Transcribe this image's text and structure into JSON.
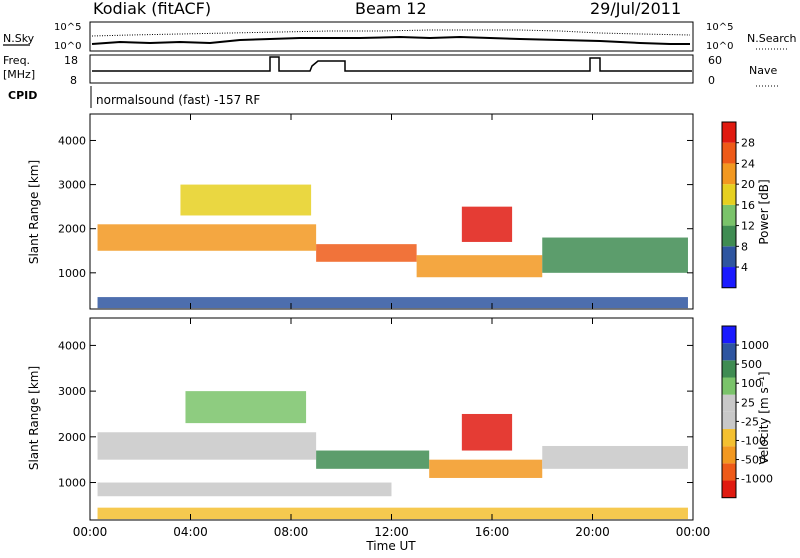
{
  "header": {
    "station": "Kodiak (fitACF)",
    "beam": "Beam 12",
    "date": "29/Jul/2011"
  },
  "params": {
    "nsky_label": "N.Sky",
    "nsearch_label": "N.Search",
    "freq_label_1": "Freq.",
    "freq_label_2": "[MHz]",
    "nave_label": "Nave",
    "cpid_label": "CPID",
    "cpid_text": "normalsound (fast) -157 RF",
    "noise_ticks_left": [
      "10^5",
      "10^0"
    ],
    "noise_ticks_right": [
      "10^5",
      "10^0"
    ],
    "freq_ticks": [
      "18",
      "8"
    ],
    "nave_ticks": [
      "60",
      "0"
    ]
  },
  "colors": {
    "power": [
      "#1a1aff",
      "#2e55a0",
      "#3f8c52",
      "#7ac36a",
      "#e6d020",
      "#f29820",
      "#ee5a18",
      "#e01a10"
    ],
    "velocity": [
      "#e01a10",
      "#ee5a18",
      "#f29820",
      "#f4c030",
      "#c8c8c8",
      "#c8c8c8",
      "#7ac36a",
      "#3f8c52",
      "#2e55a0",
      "#1a1aff"
    ]
  },
  "chart_data": [
    {
      "type": "heatmap",
      "panel": "power",
      "xlabel": "",
      "ylabel": "Slant Range [km]",
      "ylim": [
        180,
        4600
      ],
      "yticks": [
        "4000",
        "3000",
        "2000",
        "1000"
      ],
      "xlim_hours": [
        0,
        24
      ],
      "colorbar_label": "Power [dB]",
      "colorbar_ticks": [
        "28",
        "24",
        "20",
        "16",
        "12",
        "8",
        "4"
      ],
      "bands": [
        {
          "t0": 0.3,
          "t1": 9.0,
          "r0": 1500,
          "r1": 2100,
          "level": 5
        },
        {
          "t0": 9.0,
          "t1": 13.0,
          "r0": 1250,
          "r1": 1650,
          "level": 6
        },
        {
          "t0": 13.0,
          "t1": 18.0,
          "r0": 900,
          "r1": 1400,
          "level": 5
        },
        {
          "t0": 18.0,
          "t1": 23.8,
          "r0": 1000,
          "r1": 1800,
          "level": 2
        },
        {
          "t0": 3.6,
          "t1": 8.8,
          "r0": 2300,
          "r1": 3000,
          "level": 4
        },
        {
          "t0": 14.8,
          "t1": 16.8,
          "r0": 1700,
          "r1": 2500,
          "level": 7
        },
        {
          "t0": 0.3,
          "t1": 23.8,
          "r0": 200,
          "r1": 450,
          "level": 1
        }
      ]
    },
    {
      "type": "heatmap",
      "panel": "velocity",
      "xlabel": "Time UT",
      "ylabel": "Slant Range [km]",
      "ylim": [
        180,
        4600
      ],
      "yticks": [
        "4000",
        "3000",
        "2000",
        "1000"
      ],
      "xlim_hours": [
        0,
        24
      ],
      "xticks": [
        "00:00",
        "04:00",
        "08:00",
        "12:00",
        "16:00",
        "20:00",
        "00:00"
      ],
      "colorbar_label": "Velocity [m s⁻¹]",
      "colorbar_ticks": [
        "1000",
        "500",
        "100",
        "25",
        "-25",
        "-100",
        "-500",
        "-1000"
      ],
      "bands": [
        {
          "t0": 0.3,
          "t1": 9.0,
          "r0": 1500,
          "r1": 2100,
          "level": 4
        },
        {
          "t0": 0.3,
          "t1": 12.0,
          "r0": 700,
          "r1": 1000,
          "level": 4
        },
        {
          "t0": 3.8,
          "t1": 8.6,
          "r0": 2300,
          "r1": 3000,
          "level": 6
        },
        {
          "t0": 9.0,
          "t1": 13.5,
          "r0": 1300,
          "r1": 1700,
          "level": 7
        },
        {
          "t0": 13.5,
          "t1": 18.0,
          "r0": 1100,
          "r1": 1500,
          "level": 2
        },
        {
          "t0": 14.8,
          "t1": 16.8,
          "r0": 1700,
          "r1": 2500,
          "level": 0
        },
        {
          "t0": 18.0,
          "t1": 23.8,
          "r0": 1300,
          "r1": 1800,
          "level": 4
        },
        {
          "t0": 0.3,
          "t1": 23.8,
          "r0": 200,
          "r1": 450,
          "level": 3
        }
      ]
    }
  ]
}
